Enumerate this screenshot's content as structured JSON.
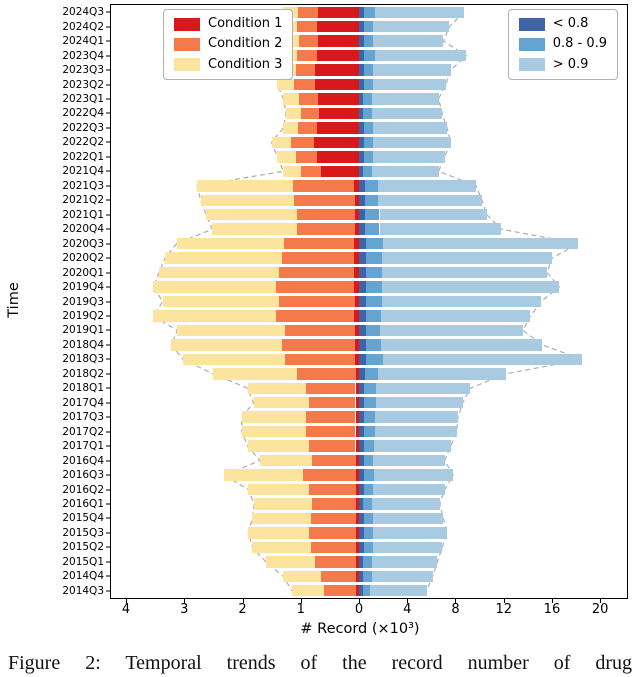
{
  "caption": "Figure 2: Temporal trends of the record number of drug",
  "chart_data": {
    "type": "bar",
    "orientation": "horizontal-diverging-stacked",
    "title": "",
    "xlabel": "# Record (×10³)",
    "ylabel": "Time",
    "units": "×10³",
    "grid": false,
    "legend_positions": {
      "left": "upper left",
      "right": "upper right"
    },
    "envelope_color": "#b3b3b3",
    "x_axis": {
      "left_ticks": [
        4,
        3,
        2,
        1
      ],
      "zero_label": "0",
      "right_ticks": [
        4,
        8,
        12,
        16,
        20
      ],
      "left_max": 4.26,
      "right_max": 22.2
    },
    "categories": [
      "2024Q3",
      "2024Q2",
      "2024Q1",
      "2023Q4",
      "2023Q3",
      "2023Q2",
      "2023Q1",
      "2022Q4",
      "2022Q3",
      "2022Q2",
      "2022Q1",
      "2021Q4",
      "2021Q3",
      "2021Q2",
      "2021Q1",
      "2020Q4",
      "2020Q3",
      "2020Q2",
      "2020Q1",
      "2019Q4",
      "2019Q3",
      "2019Q2",
      "2019Q1",
      "2018Q4",
      "2018Q3",
      "2018Q2",
      "2018Q1",
      "2017Q4",
      "2017Q3",
      "2017Q2",
      "2017Q1",
      "2016Q4",
      "2016Q3",
      "2016Q2",
      "2016Q1",
      "2015Q4",
      "2015Q3",
      "2015Q2",
      "2015Q1",
      "2014Q4",
      "2014Q3"
    ],
    "left_series": [
      {
        "name": "Condition 1",
        "color": "#d7191c",
        "values": [
          0.7,
          0.72,
          0.7,
          0.72,
          0.75,
          0.75,
          0.7,
          0.68,
          0.72,
          0.78,
          0.72,
          0.65,
          0.08,
          0.07,
          0.07,
          0.07,
          0.08,
          0.08,
          0.08,
          0.08,
          0.07,
          0.08,
          0.07,
          0.07,
          0.07,
          0.06,
          0.06,
          0.06,
          0.06,
          0.06,
          0.06,
          0.05,
          0.06,
          0.05,
          0.05,
          0.05,
          0.05,
          0.05,
          0.05,
          0.05,
          0.05
        ]
      },
      {
        "name": "Condition 2",
        "color": "#f4794b",
        "values": [
          0.35,
          0.35,
          0.33,
          0.35,
          0.33,
          0.36,
          0.33,
          0.32,
          0.33,
          0.38,
          0.36,
          0.35,
          1.05,
          1.05,
          1.0,
          1.0,
          1.2,
          1.25,
          1.3,
          1.35,
          1.3,
          1.35,
          1.2,
          1.25,
          1.2,
          1.0,
          0.85,
          0.8,
          0.85,
          0.85,
          0.8,
          0.75,
          0.9,
          0.8,
          0.75,
          0.78,
          0.8,
          0.78,
          0.7,
          0.6,
          0.55
        ]
      },
      {
        "name": "Condition 3",
        "color": "#fce49e",
        "values": [
          0.25,
          0.28,
          0.27,
          0.28,
          0.27,
          0.29,
          0.27,
          0.25,
          0.25,
          0.34,
          0.32,
          0.3,
          1.65,
          1.6,
          1.55,
          1.45,
          1.85,
          2.0,
          2.05,
          2.1,
          2.0,
          2.1,
          1.85,
          1.9,
          1.75,
          1.45,
          1.0,
          0.95,
          1.1,
          1.1,
          1.05,
          0.9,
          1.35,
          1.05,
          1.0,
          1.0,
          1.05,
          1.0,
          0.85,
          0.65,
          0.55
        ]
      }
    ],
    "right_series": [
      {
        "name": "< 0.8",
        "color": "#3d64a8",
        "values": [
          0.4,
          0.4,
          0.4,
          0.4,
          0.4,
          0.4,
          0.35,
          0.35,
          0.4,
          0.4,
          0.4,
          0.35,
          0.5,
          0.5,
          0.5,
          0.5,
          0.6,
          0.6,
          0.6,
          0.6,
          0.6,
          0.6,
          0.55,
          0.6,
          0.6,
          0.5,
          0.45,
          0.45,
          0.45,
          0.45,
          0.4,
          0.4,
          0.4,
          0.4,
          0.35,
          0.4,
          0.4,
          0.4,
          0.35,
          0.35,
          0.3
        ]
      },
      {
        "name": "0.8 - 0.9",
        "color": "#65a3d0",
        "values": [
          0.9,
          0.8,
          0.8,
          0.9,
          0.8,
          0.8,
          0.75,
          0.75,
          0.8,
          0.8,
          0.8,
          0.75,
          1.1,
          1.1,
          1.2,
          1.2,
          1.4,
          1.3,
          1.3,
          1.3,
          1.3,
          1.2,
          1.2,
          1.2,
          1.4,
          1.1,
          1.0,
          0.95,
          0.9,
          0.9,
          0.85,
          0.8,
          0.85,
          0.8,
          0.75,
          0.8,
          0.8,
          0.75,
          0.7,
          0.7,
          0.65
        ]
      },
      {
        "name": "> 0.9",
        "color": "#a9cbe2",
        "values": [
          7.4,
          6.3,
          5.8,
          7.6,
          6.4,
          6.0,
          5.5,
          5.8,
          6.1,
          6.4,
          5.9,
          5.5,
          8.1,
          8.6,
          8.9,
          10.1,
          16.2,
          14.1,
          13.7,
          14.7,
          13.2,
          12.4,
          11.85,
          13.4,
          16.5,
          10.6,
          7.75,
          7.2,
          6.85,
          6.75,
          6.35,
          5.9,
          6.55,
          5.9,
          5.6,
          5.8,
          6.1,
          5.75,
          5.45,
          5.05,
          4.65
        ]
      }
    ]
  }
}
